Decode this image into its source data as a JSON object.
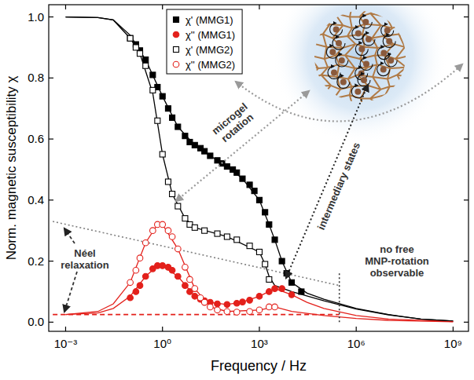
{
  "chart_data": {
    "type": "scatter",
    "x_label": "Frequency / Hz",
    "y_label": "Norm. magnetic susceptibility χ",
    "log": "x",
    "grid": false,
    "legend": "top",
    "xlim": [
      0.0003,
      3000000000
    ],
    "ylim": [
      -0.03,
      1.04
    ],
    "xticks": [
      {
        "value": 0.001,
        "label": "10⁻³"
      },
      {
        "value": 1,
        "label": "10⁰"
      },
      {
        "value": 1000,
        "label": "10³"
      },
      {
        "value": 1000000,
        "label": "10⁶"
      },
      {
        "value": 1000000000,
        "label": "10⁹"
      }
    ],
    "yticks": [
      {
        "value": 0,
        "label": "0.0"
      },
      0.2,
      0.4,
      0.6,
      0.8,
      {
        "value": 1,
        "label": "1.0"
      }
    ],
    "series": [
      {
        "name": "χ' (MMG1)",
        "type": "scatter",
        "marker": "square",
        "color": "#000000",
        "x": [
          0.1,
          0.15,
          0.2,
          0.3,
          0.5,
          0.7,
          1,
          1.5,
          2,
          3,
          5,
          7,
          10,
          15,
          20,
          30,
          50,
          70,
          100,
          150,
          200,
          300,
          500,
          700,
          1000,
          1500,
          2000,
          3000,
          5000,
          7000,
          10000,
          20000
        ],
        "values": [
          0.93,
          0.91,
          0.89,
          0.86,
          0.81,
          0.77,
          0.74,
          0.7,
          0.67,
          0.64,
          0.61,
          0.59,
          0.58,
          0.57,
          0.56,
          0.545,
          0.53,
          0.52,
          0.51,
          0.5,
          0.49,
          0.47,
          0.45,
          0.43,
          0.4,
          0.36,
          0.32,
          0.27,
          0.2,
          0.16,
          0.13,
          0.1
        ]
      },
      {
        "name": "χ'' (MMG1)",
        "type": "scatter",
        "marker": "circle",
        "color": "#e3201b",
        "x": [
          0.1,
          0.15,
          0.2,
          0.3,
          0.5,
          0.7,
          1,
          1.5,
          2,
          3,
          5,
          7,
          10,
          15,
          20,
          30,
          50,
          100,
          200,
          300,
          500,
          1000,
          2000,
          3000,
          5000,
          10000
        ],
        "values": [
          0.08,
          0.1,
          0.12,
          0.15,
          0.175,
          0.185,
          0.185,
          0.18,
          0.17,
          0.15,
          0.12,
          0.1,
          0.085,
          0.075,
          0.07,
          0.065,
          0.06,
          0.058,
          0.062,
          0.066,
          0.072,
          0.085,
          0.1,
          0.11,
          0.11,
          0.09
        ]
      },
      {
        "name": "χ' (MMG2)",
        "type": "scatter",
        "marker": "square-open",
        "color": "#000000",
        "x": [
          0.1,
          0.15,
          0.2,
          0.3,
          0.5,
          0.7,
          1,
          1.5,
          2,
          3,
          5,
          7,
          10,
          20,
          50,
          100,
          200,
          500,
          1000,
          1500,
          2000
        ],
        "values": [
          0.93,
          0.9,
          0.88,
          0.84,
          0.76,
          0.66,
          0.55,
          0.46,
          0.42,
          0.38,
          0.34,
          0.32,
          0.31,
          0.3,
          0.29,
          0.28,
          0.27,
          0.25,
          0.23,
          0.19,
          0.14
        ]
      },
      {
        "name": "χ'' (MMG2)",
        "type": "scatter",
        "marker": "circle-open",
        "color": "#e3201b",
        "x": [
          0.1,
          0.15,
          0.2,
          0.3,
          0.5,
          0.7,
          1,
          1.5,
          2,
          3,
          5,
          7,
          10,
          15,
          20,
          30,
          50,
          100,
          200,
          500,
          1000,
          2000,
          3000
        ],
        "values": [
          0.13,
          0.17,
          0.21,
          0.26,
          0.3,
          0.32,
          0.32,
          0.3,
          0.28,
          0.24,
          0.18,
          0.14,
          0.11,
          0.08,
          0.065,
          0.05,
          0.04,
          0.035,
          0.033,
          0.035,
          0.04,
          0.05,
          0.05
        ]
      },
      {
        "type": "line",
        "line_style": "solid",
        "color": "#000000",
        "x": [
          0.001,
          0.01,
          0.03,
          0.1,
          0.3,
          1,
          3,
          10,
          30,
          100,
          300,
          1000,
          2000,
          3000,
          5000,
          10000,
          30000,
          100000,
          1000000,
          10000000,
          100000000,
          1000000000
        ],
        "values": [
          1,
          0.998,
          0.99,
          0.94,
          0.86,
          0.74,
          0.64,
          0.58,
          0.545,
          0.51,
          0.47,
          0.4,
          0.32,
          0.27,
          0.2,
          0.13,
          0.095,
          0.075,
          0.045,
          0.025,
          0.01,
          0.004
        ]
      },
      {
        "type": "line",
        "line_style": "solid",
        "color": "#e3201b",
        "x": [
          0.001,
          0.01,
          0.03,
          0.1,
          0.3,
          0.7,
          1,
          3,
          10,
          30,
          100,
          300,
          1000,
          3000,
          10000,
          30000,
          100000,
          1000000,
          10000000,
          1000000000
        ],
        "values": [
          0.025,
          0.03,
          0.045,
          0.085,
          0.15,
          0.185,
          0.185,
          0.15,
          0.085,
          0.065,
          0.058,
          0.066,
          0.085,
          0.11,
          0.09,
          0.065,
          0.045,
          0.022,
          0.01,
          0.002
        ]
      },
      {
        "type": "line",
        "line_style": "solid",
        "color": "#000000",
        "x": [
          0.001,
          0.01,
          0.03,
          0.1,
          0.2,
          0.5,
          1,
          2,
          5,
          10,
          100,
          1000,
          1500,
          2000,
          3000,
          10000,
          100000,
          1000000,
          10000000,
          100000000,
          1000000000
        ],
        "values": [
          1,
          0.998,
          0.99,
          0.93,
          0.88,
          0.75,
          0.55,
          0.42,
          0.34,
          0.31,
          0.28,
          0.23,
          0.19,
          0.15,
          0.12,
          0.1,
          0.07,
          0.043,
          0.024,
          0.01,
          0.004
        ]
      },
      {
        "type": "line",
        "line_style": "solid",
        "color": "#e3201b",
        "x": [
          0.001,
          0.01,
          0.03,
          0.1,
          0.3,
          0.7,
          1,
          3,
          10,
          30,
          100,
          1000,
          3000,
          10000,
          100000,
          1000000,
          10000000,
          1000000000
        ],
        "values": [
          0.025,
          0.035,
          0.06,
          0.13,
          0.26,
          0.32,
          0.32,
          0.24,
          0.11,
          0.05,
          0.035,
          0.04,
          0.05,
          0.035,
          0.022,
          0.012,
          0.006,
          0.001
        ]
      },
      {
        "type": "line",
        "line_style": "dotted",
        "color": "#808080",
        "x": [
          0.0004,
          300000
        ],
        "values": [
          0.33,
          0.12
        ]
      },
      {
        "type": "line",
        "line_style": "dashed",
        "color": "#e3201b",
        "x": [
          0.0004,
          300000
        ],
        "values": [
          0.025,
          0.025
        ]
      },
      {
        "type": "line",
        "line_style": "dotted",
        "color": "#333333",
        "x": [
          300000,
          300000
        ],
        "values": [
          0,
          0.16
        ]
      }
    ],
    "annotations": [
      {
        "text": "microgel rotation"
      },
      {
        "text": "intermediary states"
      },
      {
        "text": "Néel relaxation"
      },
      {
        "text": "no free MNP-rotation observable"
      }
    ]
  }
}
